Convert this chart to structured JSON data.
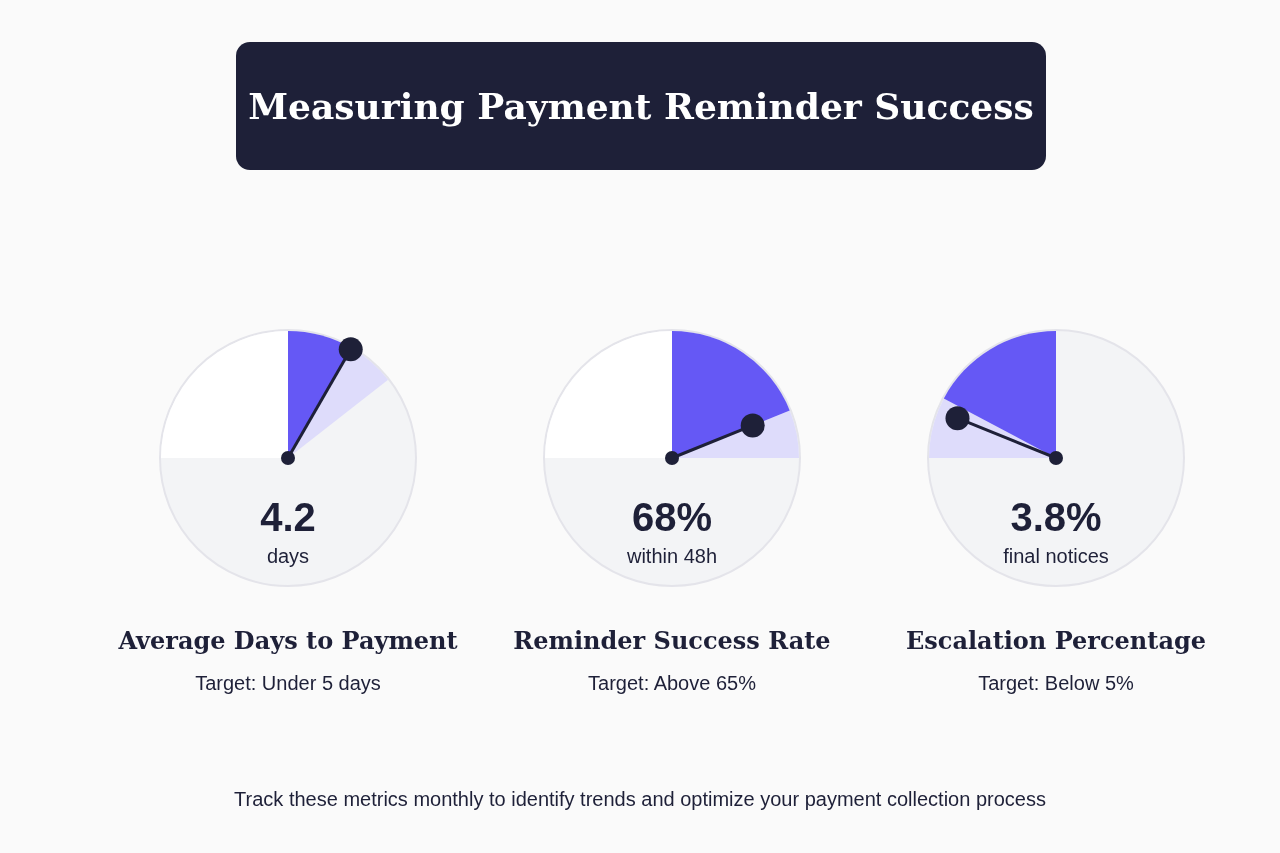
{
  "chart_data": [
    {
      "type": "other",
      "title": "Measuring Payment Reminder Success",
      "annotations": [
        "Track these metrics monthly to identify trends and optimize your payment collection process"
      ]
    },
    {
      "type": "other",
      "title": "Average Days to Payment",
      "subtitle": "Target: Under 5 days",
      "values": [
        4.2
      ],
      "value_labels": [
        "4.2"
      ],
      "annotations": [
        "days"
      ]
    },
    {
      "type": "other",
      "title": "Reminder Success Rate",
      "subtitle": "Target: Above 65%",
      "values": [
        68
      ],
      "value_labels": [
        "68%"
      ],
      "annotations": [
        "within 48h"
      ]
    },
    {
      "type": "other",
      "title": "Escalation Percentage",
      "subtitle": "Target: Below 5%",
      "values": [
        3.8
      ],
      "value_labels": [
        "3.8%"
      ],
      "annotations": [
        "final notices"
      ]
    }
  ]
}
